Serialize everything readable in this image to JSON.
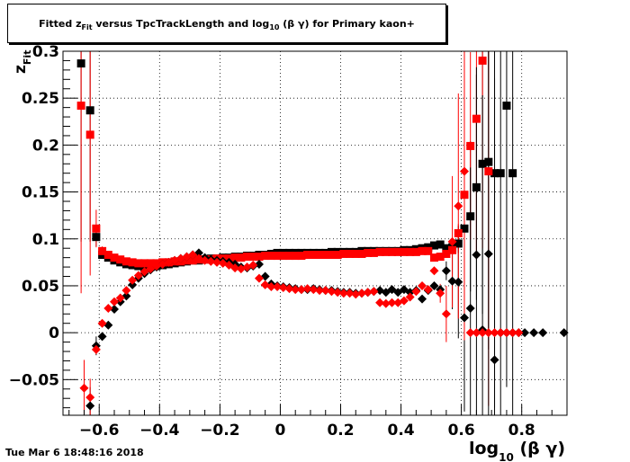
{
  "title": "Fitted  z_Fit  versus TpcTrackLength and log_10 (β γ) for Primary kaon+",
  "title_parts": {
    "pre": "Fitted  z",
    "sub1": "Fit",
    "mid": "  versus TpcTrackLength and log",
    "sub2": "10",
    "post": " (β γ) for Primary kaon+"
  },
  "timestamp": "Tue Mar  6 18:48:16 2018",
  "chart_data": {
    "type": "scatter",
    "xlabel": "log_10 (β γ)",
    "ylabel": "z_Fit",
    "xlabel_parts": {
      "pre": "log",
      "sub": "10",
      "post": " (β γ)"
    },
    "ylabel_parts": {
      "pre": "z",
      "sub": "Fit"
    },
    "xlim": [
      -0.72,
      0.95
    ],
    "ylim": [
      -0.088,
      0.3
    ],
    "x_ticks": [
      -0.6,
      -0.4,
      -0.2,
      0,
      0.2,
      0.4,
      0.6,
      0.8
    ],
    "x_tick_labels": [
      "−0.6",
      "−0.4",
      "−0.2",
      "0",
      "0.2",
      "0.4",
      "0.6",
      "0.8"
    ],
    "y_ticks": [
      -0.05,
      0,
      0.05,
      0.1,
      0.15,
      0.2,
      0.25,
      0.3
    ],
    "y_tick_labels": [
      "−0.05",
      "0",
      "0.05",
      "0.1",
      "0.15",
      "0.2",
      "0.25",
      "0.3"
    ],
    "grid": true,
    "series": [
      {
        "marker": "square",
        "color": "#000000",
        "x": [
          -0.66,
          -0.63,
          -0.61,
          -0.59,
          -0.57,
          -0.55,
          -0.53,
          -0.51,
          -0.49,
          -0.47,
          -0.45,
          -0.43,
          -0.41,
          -0.39,
          -0.37,
          -0.35,
          -0.33,
          -0.31,
          -0.29,
          -0.27,
          -0.25,
          -0.23,
          -0.21,
          -0.19,
          -0.17,
          -0.15,
          -0.13,
          -0.11,
          -0.09,
          -0.07,
          -0.05,
          -0.03,
          -0.01,
          0.01,
          0.03,
          0.05,
          0.07,
          0.09,
          0.11,
          0.13,
          0.15,
          0.17,
          0.19,
          0.21,
          0.23,
          0.25,
          0.27,
          0.29,
          0.31,
          0.33,
          0.35,
          0.37,
          0.39,
          0.41,
          0.43,
          0.45,
          0.47,
          0.49,
          0.51,
          0.53,
          0.55,
          0.57,
          0.59,
          0.61,
          0.63,
          0.65,
          0.67,
          0.69,
          0.71,
          0.73,
          0.75,
          0.77
        ],
        "y": [
          0.287,
          0.237,
          0.102,
          0.083,
          0.08,
          0.077,
          0.075,
          0.073,
          0.072,
          0.071,
          0.07,
          0.07,
          0.071,
          0.072,
          0.073,
          0.074,
          0.075,
          0.076,
          0.077,
          0.077,
          0.078,
          0.079,
          0.079,
          0.08,
          0.08,
          0.081,
          0.081,
          0.082,
          0.082,
          0.083,
          0.083,
          0.084,
          0.085,
          0.085,
          0.085,
          0.085,
          0.085,
          0.085,
          0.085,
          0.085,
          0.085,
          0.086,
          0.086,
          0.086,
          0.086,
          0.086,
          0.087,
          0.087,
          0.087,
          0.087,
          0.087,
          0.087,
          0.087,
          0.088,
          0.088,
          0.089,
          0.09,
          0.091,
          0.093,
          0.094,
          0.09,
          0.091,
          0.095,
          0.111,
          0.124,
          0.155,
          0.18,
          0.182,
          0.17,
          0.17,
          0.242,
          0.17
        ],
        "yerr": [
          0.19,
          0.14,
          0.01,
          0.004,
          0,
          0,
          0,
          0,
          0,
          0,
          0,
          0,
          0,
          0,
          0,
          0,
          0,
          0,
          0,
          0,
          0,
          0,
          0,
          0,
          0,
          0,
          0,
          0,
          0,
          0,
          0,
          0,
          0,
          0,
          0,
          0,
          0,
          0,
          0,
          0,
          0,
          0,
          0,
          0,
          0,
          0,
          0,
          0,
          0,
          0,
          0,
          0,
          0,
          0,
          0,
          0,
          0,
          0,
          0,
          0,
          0,
          0,
          0.01,
          0.04,
          0.08,
          0.12,
          0.16,
          0.2,
          0.25,
          0.3,
          0.3,
          0.3
        ]
      },
      {
        "marker": "square",
        "color": "#ff0000",
        "x": [
          -0.66,
          -0.63,
          -0.61,
          -0.59,
          -0.57,
          -0.55,
          -0.53,
          -0.51,
          -0.49,
          -0.47,
          -0.45,
          -0.43,
          -0.41,
          -0.39,
          -0.37,
          -0.35,
          -0.33,
          -0.31,
          -0.29,
          -0.27,
          -0.25,
          -0.23,
          -0.21,
          -0.19,
          -0.17,
          -0.15,
          -0.13,
          -0.11,
          -0.09,
          -0.07,
          -0.05,
          -0.03,
          -0.01,
          0.01,
          0.03,
          0.05,
          0.07,
          0.09,
          0.11,
          0.13,
          0.15,
          0.17,
          0.19,
          0.21,
          0.23,
          0.25,
          0.27,
          0.29,
          0.31,
          0.33,
          0.35,
          0.37,
          0.39,
          0.41,
          0.43,
          0.45,
          0.47,
          0.49,
          0.51,
          0.53,
          0.55,
          0.57,
          0.59,
          0.61,
          0.63,
          0.65,
          0.67,
          0.69
        ],
        "y": [
          0.242,
          0.211,
          0.111,
          0.087,
          0.083,
          0.08,
          0.078,
          0.076,
          0.075,
          0.074,
          0.074,
          0.074,
          0.074,
          0.075,
          0.075,
          0.076,
          0.076,
          0.077,
          0.077,
          0.078,
          0.078,
          0.078,
          0.079,
          0.079,
          0.079,
          0.08,
          0.08,
          0.081,
          0.081,
          0.081,
          0.082,
          0.082,
          0.082,
          0.082,
          0.082,
          0.082,
          0.082,
          0.083,
          0.083,
          0.083,
          0.083,
          0.083,
          0.083,
          0.084,
          0.084,
          0.084,
          0.084,
          0.085,
          0.085,
          0.086,
          0.086,
          0.086,
          0.086,
          0.086,
          0.086,
          0.086,
          0.087,
          0.087,
          0.08,
          0.081,
          0.084,
          0.088,
          0.106,
          0.147,
          0.199,
          0.228,
          0.29,
          0.172
        ],
        "yerr": [
          0.2,
          0.15,
          0.02,
          0.005,
          0,
          0,
          0,
          0,
          0,
          0,
          0,
          0,
          0,
          0,
          0,
          0,
          0,
          0,
          0,
          0,
          0,
          0,
          0,
          0,
          0,
          0,
          0,
          0,
          0,
          0,
          0,
          0,
          0,
          0,
          0,
          0,
          0,
          0,
          0,
          0,
          0,
          0,
          0,
          0,
          0,
          0,
          0,
          0,
          0,
          0,
          0,
          0,
          0,
          0,
          0,
          0,
          0,
          0,
          0,
          0,
          0,
          0,
          0.01,
          0.05,
          0.1,
          0.15,
          0.2,
          0.25
        ]
      },
      {
        "marker": "diamond",
        "color": "#000000",
        "x": [
          -0.63,
          -0.61,
          -0.59,
          -0.57,
          -0.55,
          -0.53,
          -0.51,
          -0.49,
          -0.47,
          -0.45,
          -0.43,
          -0.41,
          -0.39,
          -0.37,
          -0.35,
          -0.33,
          -0.31,
          -0.29,
          -0.27,
          -0.25,
          -0.23,
          -0.21,
          -0.19,
          -0.17,
          -0.15,
          -0.13,
          -0.11,
          -0.09,
          -0.07,
          -0.05,
          -0.03,
          -0.01,
          0.01,
          0.03,
          0.05,
          0.07,
          0.09,
          0.11,
          0.13,
          0.15,
          0.17,
          0.19,
          0.21,
          0.23,
          0.25,
          0.27,
          0.29,
          0.31,
          0.33,
          0.35,
          0.37,
          0.39,
          0.41,
          0.43,
          0.45,
          0.47,
          0.49,
          0.51,
          0.53,
          0.55,
          0.57,
          0.59,
          0.61,
          0.63,
          0.65,
          0.67,
          0.69,
          0.71,
          0.73,
          0.75,
          0.77,
          0.79,
          0.81,
          0.84,
          0.87,
          0.94
        ],
        "y": [
          -0.078,
          -0.014,
          -0.004,
          0.008,
          0.025,
          0.033,
          0.039,
          0.051,
          0.058,
          0.063,
          0.067,
          0.07,
          0.073,
          0.075,
          0.077,
          0.079,
          0.081,
          0.083,
          0.085,
          0.08,
          0.078,
          0.077,
          0.076,
          0.075,
          0.073,
          0.07,
          0.069,
          0.071,
          0.073,
          0.06,
          0.052,
          0.05,
          0.049,
          0.048,
          0.047,
          0.046,
          0.046,
          0.047,
          0.046,
          0.045,
          0.045,
          0.044,
          0.043,
          0.043,
          0.042,
          0.042,
          0.043,
          0.044,
          0.045,
          0.043,
          0.046,
          0.043,
          0.046,
          0.043,
          0.045,
          0.036,
          0.045,
          0.05,
          0.046,
          0.066,
          0.055,
          0.054,
          0.016,
          0.026,
          0.083,
          0.003,
          0.084,
          -0.029,
          0,
          0,
          0,
          0,
          0,
          0,
          0,
          0
        ],
        "yerr": [
          0.02,
          0.01,
          0.003,
          0,
          0,
          0,
          0,
          0,
          0,
          0,
          0,
          0,
          0,
          0,
          0,
          0,
          0,
          0,
          0,
          0,
          0,
          0,
          0,
          0,
          0,
          0,
          0,
          0,
          0,
          0,
          0,
          0,
          0,
          0,
          0,
          0,
          0,
          0,
          0,
          0,
          0,
          0,
          0,
          0,
          0,
          0,
          0,
          0,
          0,
          0,
          0,
          0,
          0,
          0,
          0,
          0,
          0,
          0,
          0,
          0.01,
          0.03,
          0.06,
          0.1,
          0.15,
          0.2,
          0.25,
          0.3,
          0.3,
          0,
          0,
          0,
          0,
          0,
          0,
          0,
          0
        ]
      },
      {
        "marker": "diamond",
        "color": "#ff0000",
        "x": [
          -0.65,
          -0.63,
          -0.61,
          -0.59,
          -0.57,
          -0.55,
          -0.53,
          -0.51,
          -0.49,
          -0.47,
          -0.45,
          -0.43,
          -0.41,
          -0.39,
          -0.37,
          -0.35,
          -0.33,
          -0.31,
          -0.29,
          -0.27,
          -0.25,
          -0.23,
          -0.21,
          -0.19,
          -0.17,
          -0.15,
          -0.13,
          -0.11,
          -0.09,
          -0.07,
          -0.05,
          -0.03,
          -0.01,
          0.01,
          0.03,
          0.05,
          0.07,
          0.09,
          0.11,
          0.13,
          0.15,
          0.17,
          0.19,
          0.21,
          0.23,
          0.25,
          0.27,
          0.29,
          0.31,
          0.33,
          0.35,
          0.37,
          0.39,
          0.41,
          0.43,
          0.45,
          0.47,
          0.49,
          0.51,
          0.53,
          0.55,
          0.57,
          0.59,
          0.61,
          0.63,
          0.65,
          0.67,
          0.69,
          0.71,
          0.73,
          0.75,
          0.77,
          0.79
        ],
        "y": [
          -0.059,
          -0.069,
          -0.018,
          0.01,
          0.026,
          0.033,
          0.037,
          0.045,
          0.056,
          0.061,
          0.065,
          0.068,
          0.071,
          0.073,
          0.075,
          0.077,
          0.079,
          0.081,
          0.083,
          0.079,
          0.077,
          0.076,
          0.075,
          0.074,
          0.072,
          0.069,
          0.068,
          0.07,
          0.072,
          0.058,
          0.051,
          0.049,
          0.049,
          0.048,
          0.047,
          0.046,
          0.046,
          0.047,
          0.046,
          0.045,
          0.045,
          0.044,
          0.043,
          0.042,
          0.042,
          0.041,
          0.042,
          0.043,
          0.044,
          0.032,
          0.031,
          0.032,
          0.032,
          0.034,
          0.038,
          0.044,
          0.05,
          0.046,
          0.066,
          0.042,
          0.02,
          0.097,
          0.135,
          0.172,
          0,
          0,
          0,
          0,
          0,
          0,
          0,
          0,
          0
        ],
        "yerr": [
          0.03,
          0.02,
          0.005,
          0,
          0,
          0,
          0,
          0,
          0,
          0,
          0,
          0,
          0,
          0,
          0,
          0,
          0,
          0,
          0,
          0,
          0,
          0,
          0,
          0,
          0,
          0,
          0,
          0,
          0,
          0,
          0,
          0,
          0,
          0,
          0,
          0,
          0,
          0,
          0,
          0,
          0,
          0,
          0,
          0,
          0,
          0,
          0,
          0,
          0,
          0,
          0,
          0,
          0,
          0,
          0,
          0,
          0,
          0,
          0,
          0.01,
          0.03,
          0.07,
          0.12,
          0.18,
          0,
          0,
          0,
          0,
          0,
          0,
          0,
          0,
          0
        ]
      }
    ]
  }
}
